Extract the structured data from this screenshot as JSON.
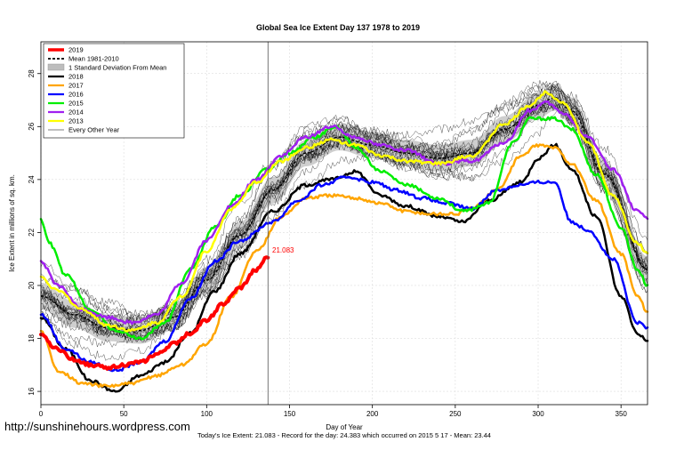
{
  "chart_data": {
    "type": "line",
    "title": "Global Sea Ice Extent Day 137 1978 to 2019",
    "xlabel": "Day of Year",
    "ylabel": "Ice Extent in millions of sq. km.",
    "xlim": [
      0,
      366
    ],
    "ylim": [
      15.5,
      29.2
    ],
    "x_ticks": [
      0,
      50,
      100,
      150,
      200,
      250,
      300,
      350
    ],
    "y_ticks": [
      16,
      18,
      20,
      22,
      24,
      26,
      28
    ],
    "grid": true,
    "legend_position": "top-left",
    "current_day": 137,
    "current_value": 21.083,
    "current_value_label": "21.083",
    "footer": "Today's Ice Extent: 21.083  - Record for the day: 24.383 which occurred on 2015 5 17  - Mean: 23.44",
    "watermark": "http://sunshinehours.wordpress.com",
    "legend": [
      {
        "label": "2019",
        "color": "#ff0000",
        "style": "thick"
      },
      {
        "label": "Mean 1981-2010",
        "color": "#000000",
        "style": "dashed"
      },
      {
        "label": "1 Standard Deviation From Mean",
        "color": "#bdbdbd",
        "style": "band"
      },
      {
        "label": "2018",
        "color": "#000000",
        "style": "solid"
      },
      {
        "label": "2017",
        "color": "#ffa500",
        "style": "solid"
      },
      {
        "label": "2016",
        "color": "#0000ff",
        "style": "solid"
      },
      {
        "label": "2015",
        "color": "#00ee00",
        "style": "solid"
      },
      {
        "label": "2014",
        "color": "#a020f0",
        "style": "solid"
      },
      {
        "label": "2013",
        "color": "#ffff00",
        "style": "solid"
      },
      {
        "label": "Every Other Year",
        "color": "#000000",
        "style": "thin"
      }
    ],
    "mean": {
      "x": [
        0,
        20,
        40,
        60,
        80,
        100,
        120,
        140,
        160,
        180,
        200,
        220,
        240,
        260,
        280,
        300,
        310,
        320,
        340,
        366
      ],
      "y": [
        19.6,
        18.9,
        18.4,
        18.3,
        18.8,
        20.2,
        21.9,
        23.6,
        25.0,
        25.6,
        25.3,
        25.0,
        24.8,
        25.0,
        25.9,
        26.8,
        27.1,
        26.6,
        24.2,
        20.6
      ]
    },
    "sd": 0.5,
    "series": [
      {
        "name": "2019",
        "color": "#ff0000",
        "width": 4,
        "x": [
          0,
          10,
          20,
          30,
          40,
          50,
          60,
          70,
          80,
          90,
          100,
          110,
          120,
          130,
          137
        ],
        "y": [
          18.1,
          17.6,
          17.2,
          17.0,
          16.9,
          17.0,
          17.1,
          17.4,
          17.8,
          18.2,
          18.7,
          19.3,
          19.9,
          20.6,
          21.083
        ]
      },
      {
        "name": "2018",
        "color": "#000000",
        "width": 2.5,
        "x": [
          0,
          15,
          30,
          45,
          60,
          75,
          90,
          105,
          120,
          140,
          160,
          175,
          190,
          205,
          220,
          240,
          255,
          270,
          290,
          300,
          310,
          320,
          335,
          350,
          360,
          366
        ],
        "y": [
          18.8,
          17.6,
          16.4,
          16.0,
          16.6,
          17.1,
          18.2,
          19.8,
          21.2,
          22.8,
          23.8,
          24.0,
          24.3,
          23.4,
          23.0,
          22.6,
          22.4,
          23.2,
          23.9,
          24.8,
          25.3,
          24.4,
          22.6,
          19.6,
          18.2,
          17.9
        ]
      },
      {
        "name": "2017",
        "color": "#ffa500",
        "width": 2.5,
        "x": [
          0,
          10,
          25,
          40,
          55,
          70,
          85,
          100,
          115,
          130,
          145,
          160,
          175,
          190,
          205,
          220,
          235,
          250,
          260,
          275,
          290,
          300,
          310,
          320,
          335,
          350,
          360,
          366
        ],
        "y": [
          18.3,
          16.8,
          16.3,
          16.2,
          16.3,
          16.6,
          17.0,
          17.8,
          19.6,
          21.3,
          22.6,
          23.3,
          23.4,
          23.3,
          23.1,
          22.8,
          22.7,
          22.7,
          22.9,
          23.6,
          24.9,
          25.3,
          25.2,
          24.6,
          23.2,
          21.2,
          19.6,
          19.0
        ]
      },
      {
        "name": "2016",
        "color": "#0000ff",
        "width": 2.5,
        "x": [
          0,
          15,
          30,
          45,
          60,
          75,
          90,
          105,
          120,
          140,
          155,
          170,
          185,
          200,
          215,
          230,
          245,
          260,
          275,
          290,
          300,
          310,
          320,
          330,
          345,
          360,
          366
        ],
        "y": [
          18.9,
          17.6,
          17.1,
          16.8,
          17.1,
          17.9,
          19.5,
          20.9,
          21.7,
          22.4,
          23.2,
          23.8,
          24.1,
          23.9,
          23.6,
          23.3,
          23.1,
          22.9,
          23.6,
          23.8,
          23.9,
          23.9,
          22.4,
          22.1,
          21.0,
          18.6,
          18.4
        ]
      },
      {
        "name": "2015",
        "color": "#00ee00",
        "width": 2.5,
        "x": [
          0,
          5,
          15,
          30,
          45,
          60,
          75,
          90,
          105,
          120,
          137,
          150,
          165,
          178,
          190,
          205,
          220,
          240,
          255,
          270,
          285,
          295,
          310,
          320,
          335,
          350,
          360,
          366
        ],
        "y": [
          22.5,
          21.6,
          20.4,
          19.1,
          18.3,
          18.0,
          18.6,
          20.6,
          22.2,
          23.4,
          24.4,
          25.0,
          25.6,
          26.0,
          25.2,
          24.3,
          23.8,
          23.3,
          22.8,
          23.1,
          25.4,
          26.3,
          26.3,
          25.9,
          24.2,
          22.2,
          20.6,
          20.0
        ]
      },
      {
        "name": "2014",
        "color": "#a020f0",
        "width": 2.5,
        "x": [
          0,
          10,
          25,
          40,
          55,
          70,
          85,
          100,
          115,
          130,
          145,
          160,
          175,
          190,
          205,
          220,
          240,
          260,
          280,
          295,
          305,
          315,
          330,
          345,
          360,
          366
        ],
        "y": [
          20.9,
          20.0,
          19.1,
          18.8,
          18.6,
          18.9,
          20.1,
          21.7,
          23.0,
          24.0,
          24.9,
          25.6,
          26.0,
          25.6,
          25.3,
          25.1,
          24.6,
          24.7,
          25.4,
          26.6,
          26.9,
          26.5,
          25.6,
          24.4,
          22.8,
          22.5
        ]
      },
      {
        "name": "2013",
        "color": "#ffff00",
        "width": 2.5,
        "x": [
          0,
          10,
          25,
          40,
          55,
          70,
          85,
          100,
          115,
          130,
          145,
          160,
          175,
          190,
          205,
          220,
          240,
          260,
          280,
          295,
          305,
          315,
          330,
          345,
          360,
          366
        ],
        "y": [
          20.3,
          19.8,
          19.1,
          18.5,
          18.3,
          18.6,
          19.6,
          21.3,
          22.9,
          23.9,
          24.7,
          25.2,
          25.5,
          25.3,
          24.9,
          24.7,
          24.6,
          24.9,
          26.1,
          26.8,
          27.3,
          26.9,
          25.4,
          23.4,
          21.6,
          21.2
        ]
      }
    ]
  }
}
